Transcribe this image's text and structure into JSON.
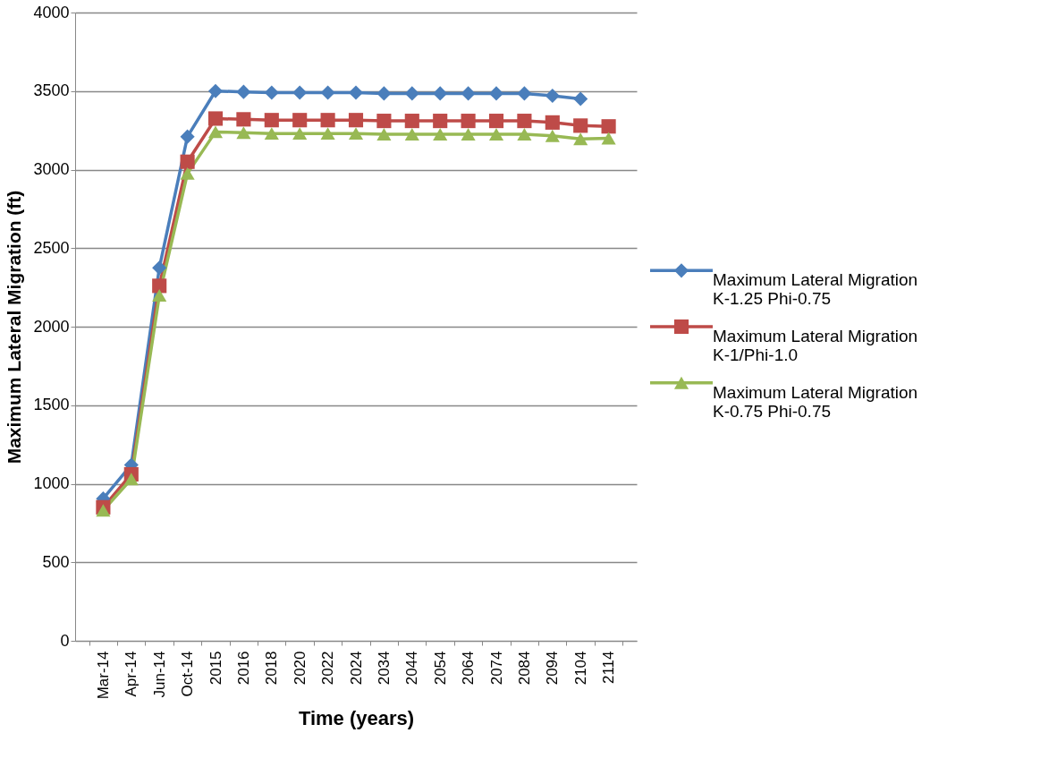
{
  "chart_data": {
    "type": "line",
    "xlabel": "Time  (years)",
    "ylabel": "Maximum Lateral Migration  (ft)",
    "categories": [
      "Mar-14",
      "Apr-14",
      "Jun-14",
      "Oct-14",
      "2015",
      "2016",
      "2018",
      "2020",
      "2022",
      "2024",
      "2034",
      "2044",
      "2054",
      "2064",
      "2074",
      "2084",
      "2094",
      "2104",
      "2114"
    ],
    "series": [
      {
        "name": "Maximum Lateral Migration\nK-1.25 Phi-0.75",
        "color": "#4a7ebb",
        "marker": "diamond",
        "values": [
          905,
          1120,
          2375,
          3210,
          3500,
          3495,
          3490,
          3490,
          3490,
          3490,
          3485,
          3485,
          3485,
          3485,
          3485,
          3485,
          3470,
          3450,
          null
        ]
      },
      {
        "name": "Maximum Lateral Migration\nK-1/Phi-1.0",
        "color": "#be4b48",
        "marker": "square",
        "values": [
          850,
          1060,
          2260,
          3050,
          3325,
          3320,
          3315,
          3315,
          3315,
          3315,
          3310,
          3310,
          3310,
          3310,
          3310,
          3310,
          3300,
          3280,
          3275
        ]
      },
      {
        "name": "Maximum Lateral Migration\nK-0.75 Phi-0.75",
        "color": "#98b954",
        "marker": "triangle",
        "values": [
          830,
          1030,
          2200,
          2975,
          3240,
          3235,
          3230,
          3230,
          3230,
          3230,
          3225,
          3225,
          3225,
          3225,
          3225,
          3225,
          3215,
          3195,
          3200
        ]
      }
    ],
    "ylim": [
      0,
      4000
    ],
    "yticks": [
      0,
      500,
      1000,
      1500,
      2000,
      2500,
      3000,
      3500,
      4000
    ],
    "grid": "y",
    "legend": "right",
    "line_style": "solid"
  }
}
